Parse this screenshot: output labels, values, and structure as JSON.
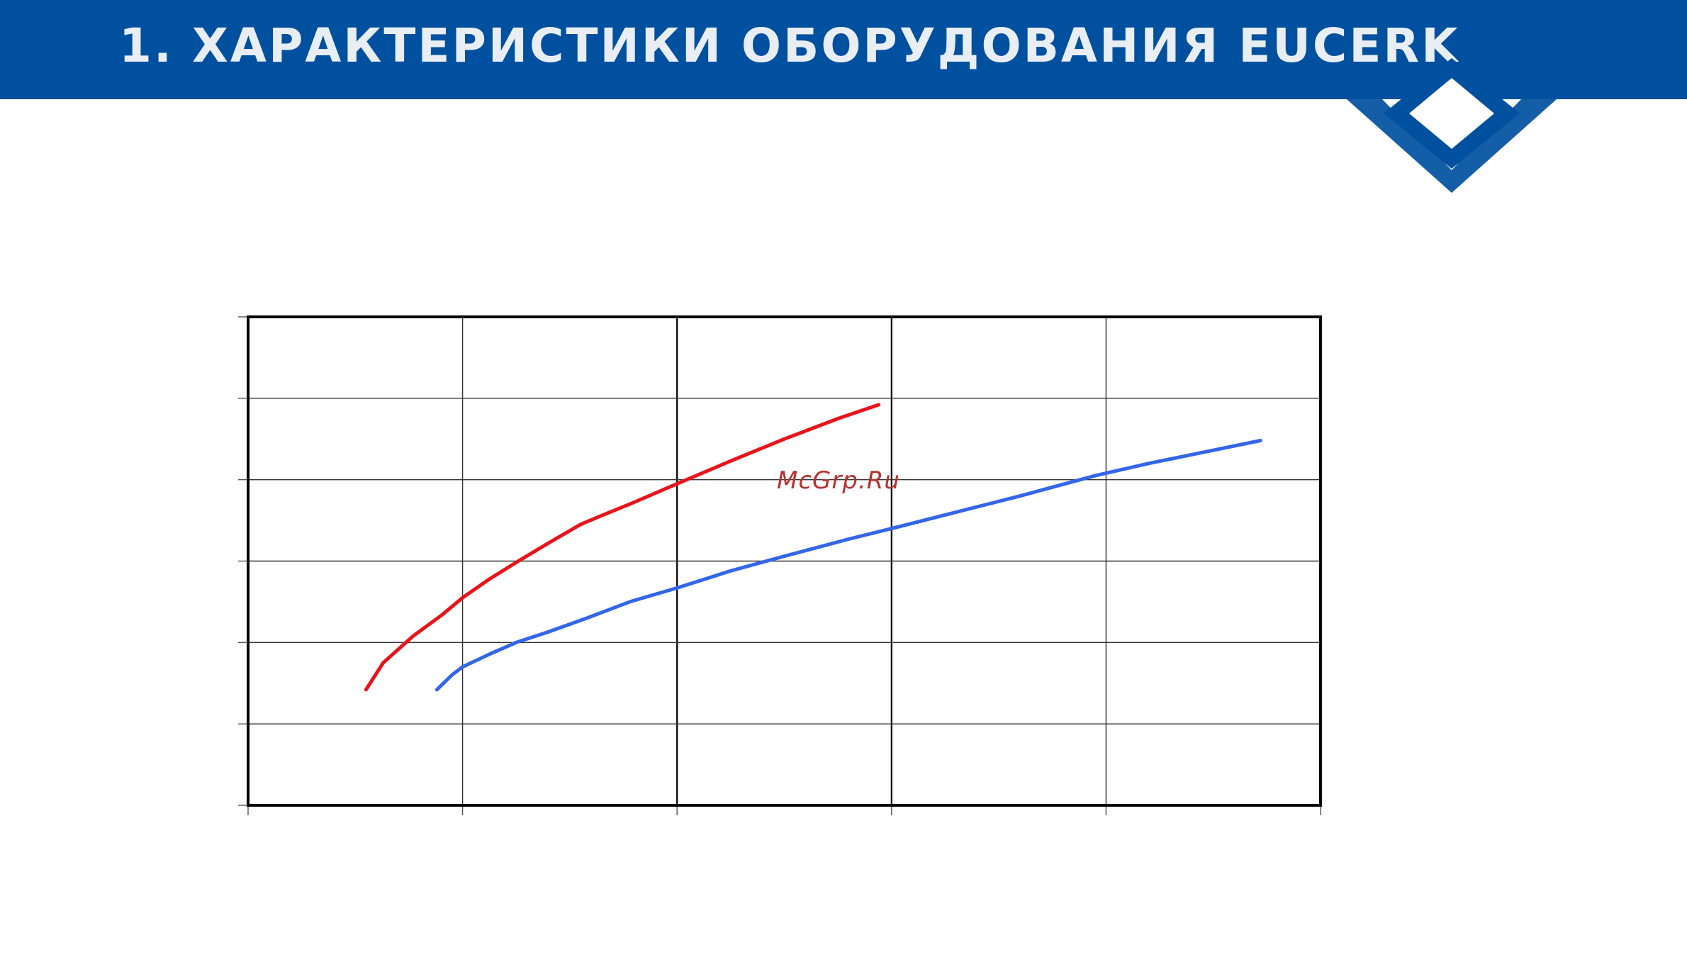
{
  "slide": {
    "title": "1. ХАРАКТЕРИСТИКИ ОБОРУДОВАНИЯ EUCERK",
    "brand_color": "#0050a0",
    "logo_icon": "diamond-logo-icon"
  },
  "watermark": "McGrp.Ru",
  "chart_data": {
    "type": "line",
    "xlim": [
      0,
      5
    ],
    "ylim": [
      0,
      6
    ],
    "grid": true,
    "series": [
      {
        "color": "#e8141b",
        "x": [
          0.55,
          0.63,
          0.77,
          0.9,
          1.0,
          1.12,
          1.26,
          1.4,
          1.55,
          1.64,
          1.78,
          2.0,
          2.25,
          2.5,
          2.75,
          2.94
        ],
        "y": [
          1.42,
          1.75,
          2.08,
          2.33,
          2.55,
          2.77,
          3.0,
          3.22,
          3.45,
          3.55,
          3.7,
          3.95,
          4.23,
          4.5,
          4.75,
          4.92
        ]
      },
      {
        "color": "#3366e8",
        "x": [
          0.88,
          0.95,
          1.0,
          1.12,
          1.25,
          1.4,
          1.58,
          1.78,
          2.0,
          2.25,
          2.5,
          2.8,
          3.0,
          3.3,
          3.6,
          3.95,
          4.2,
          4.72
        ],
        "y": [
          1.42,
          1.6,
          1.7,
          1.85,
          2.0,
          2.13,
          2.3,
          2.5,
          2.67,
          2.88,
          3.06,
          3.27,
          3.4,
          3.6,
          3.8,
          4.05,
          4.2,
          4.48
        ]
      }
    ]
  }
}
